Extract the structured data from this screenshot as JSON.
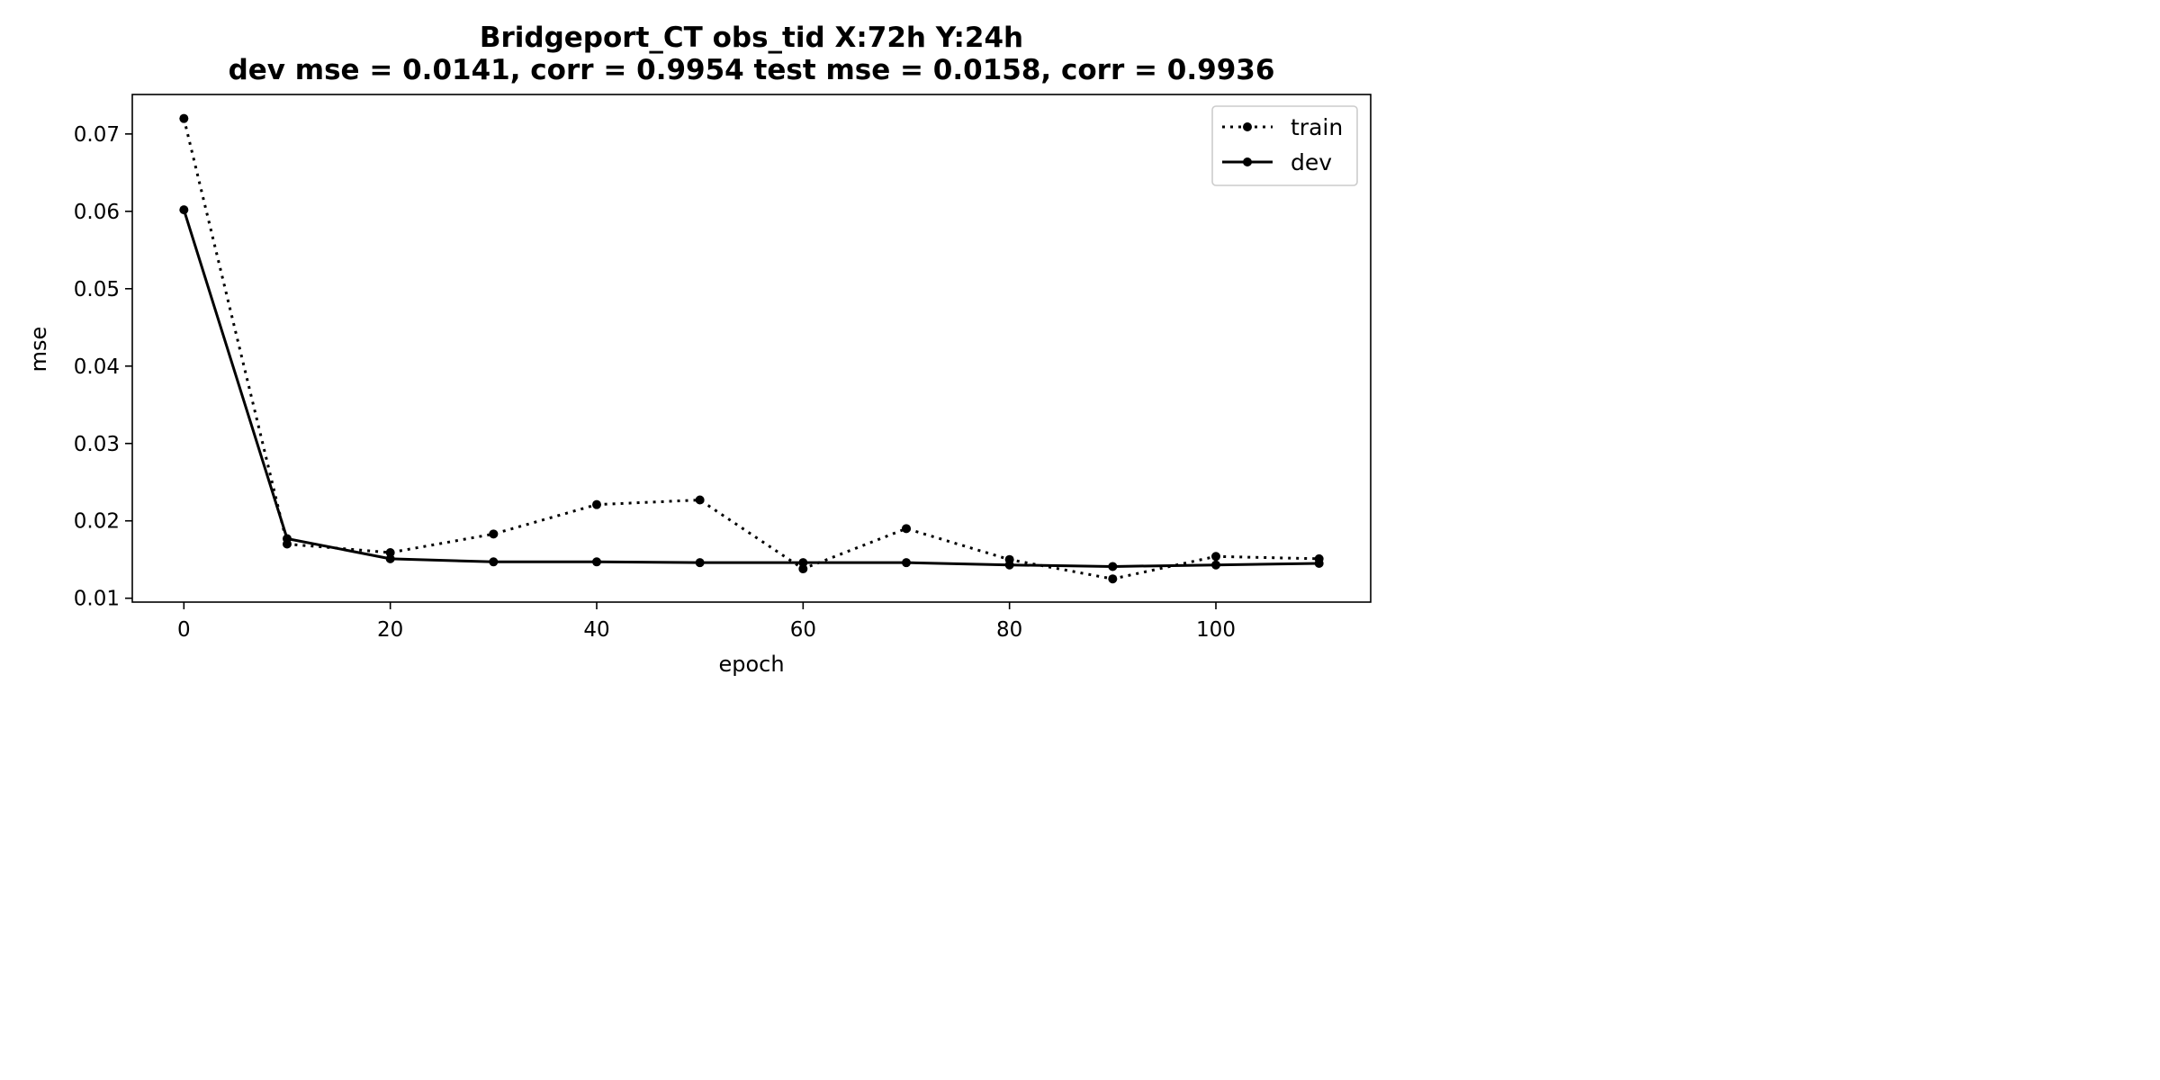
{
  "chart_data": {
    "type": "line",
    "title": "Bridgeport_CT   obs_tid   X:72h   Y:24h",
    "subtitle": "dev mse = 0.0141, corr = 0.9954   test mse = 0.0158, corr = 0.9936",
    "xlabel": "epoch",
    "ylabel": "mse",
    "xlim": [
      -5,
      115
    ],
    "ylim": [
      0.0095,
      0.0751
    ],
    "x_ticks": [
      0,
      20,
      40,
      60,
      80,
      100
    ],
    "x_tick_labels": [
      "0",
      "20",
      "40",
      "60",
      "80",
      "100"
    ],
    "y_ticks": [
      0.01,
      0.02,
      0.03,
      0.04,
      0.05,
      0.06,
      0.07
    ],
    "y_tick_labels": [
      "0.01",
      "0.02",
      "0.03",
      "0.04",
      "0.05",
      "0.06",
      "0.07"
    ],
    "grid": false,
    "legend_position": "top-right",
    "x": [
      0,
      10,
      20,
      30,
      40,
      50,
      60,
      70,
      80,
      90,
      100,
      110
    ],
    "series": [
      {
        "name": "train",
        "line_style": "dotted",
        "color": "#000000",
        "values": [
          0.072,
          0.017,
          0.0159,
          0.0183,
          0.0221,
          0.0227,
          0.0138,
          0.019,
          0.015,
          0.0125,
          0.0154,
          0.0151
        ]
      },
      {
        "name": "dev",
        "line_style": "solid",
        "color": "#000000",
        "values": [
          0.0602,
          0.0177,
          0.0151,
          0.0147,
          0.0147,
          0.0146,
          0.0146,
          0.0146,
          0.0143,
          0.0141,
          0.0143,
          0.0145
        ]
      }
    ]
  }
}
